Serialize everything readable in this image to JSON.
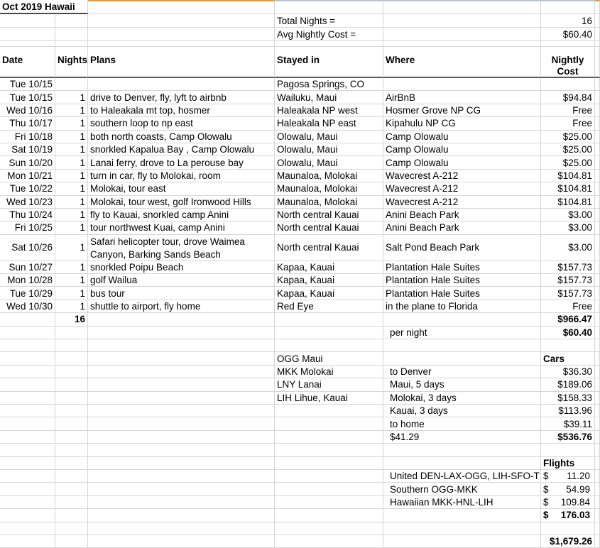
{
  "sheet": {
    "title": "Oct 2019 Hawaii",
    "summary": {
      "total_nights_label": "Total Nights =",
      "total_nights_value": "16",
      "avg_cost_label": "Avg Nightly Cost =",
      "avg_cost_value": "$60.40"
    },
    "headers": {
      "date": "Date",
      "nights": "Nights",
      "plans": "Plans",
      "stayed": "Stayed in",
      "where": "Where",
      "cost": "Nightly Cost"
    }
  },
  "rows": [
    {
      "date": "Tue 10/15",
      "stayed": "Pagosa Springs, CO"
    },
    {
      "date": "Tue 10/15",
      "nights": "1",
      "plans": "drive to Denver, fly, lyft to airbnb",
      "stayed": "Wailuku, Maui",
      "where": "AirBnB",
      "cost": "$94.84"
    },
    {
      "date": "Wed 10/16",
      "nights": "1",
      "plans": "to Haleakala mt top, hosmer",
      "stayed": "Haleakala NP west",
      "where": "Hosmer Grove NP CG",
      "cost": "Free"
    },
    {
      "date": "Thu 10/17",
      "nights": "1",
      "plans": "southern loop to np east",
      "stayed": "Haleakala NP east",
      "where": "Kipahulu NP CG",
      "cost": "Free"
    },
    {
      "date": "Fri 10/18",
      "nights": "1",
      "plans": "both north coasts, Camp Olowalu",
      "stayed": "Olowalu, Maui",
      "where": "Camp Olowalu",
      "cost": "$25.00"
    },
    {
      "date": "Sat 10/19",
      "nights": "1",
      "plans": "snorkled Kapalua Bay , Camp Olowalu",
      "stayed": "Olowalu, Maui",
      "where": "Camp Olowalu",
      "cost": "$25.00"
    },
    {
      "date": "Sun 10/20",
      "nights": "1",
      "plans": "Lanai ferry, drove to La perouse bay",
      "stayed": "Olowalu, Maui",
      "where": "Camp Olowalu",
      "cost": "$25.00"
    },
    {
      "date": "Mon 10/21",
      "nights": "1",
      "plans": "turn in car, fly to Molokai, room",
      "stayed": "Maunaloa, Molokai",
      "where": "Wavecrest A-212",
      "cost": "$104.81"
    },
    {
      "date": "Tue 10/22",
      "nights": "1",
      "plans": "Molokai, tour east",
      "stayed": "Maunaloa, Molokai",
      "where": "Wavecrest A-212",
      "cost": "$104.81"
    },
    {
      "date": "Wed 10/23",
      "nights": "1",
      "plans": "Molokai, tour west, golf Ironwood Hills",
      "stayed": "Maunaloa, Molokai",
      "where": "Wavecrest A-212",
      "cost": "$104.81"
    },
    {
      "date": "Thu 10/24",
      "nights": "1",
      "plans": "fly to Kauai, snorkled  camp Anini",
      "stayed": "North central Kauai",
      "where": "Anini Beach Park",
      "cost": "$3.00"
    },
    {
      "date": "Fri 10/25",
      "nights": "1",
      "plans": "tour northwest Kuai, camp Anini",
      "stayed": "North central Kauai",
      "where": "Anini Beach Park",
      "cost": "$3.00"
    },
    {
      "date": "Sat 10/26",
      "nights": "1",
      "plans": "Safari helicopter tour, drove Waimea Canyon, Barking Sands Beach",
      "stayed": "North central Kauai",
      "where": "Salt Pond Beach Park",
      "cost": "$3.00",
      "h": 37,
      "wrap": true
    },
    {
      "date": "Sun 10/27",
      "nights": "1",
      "plans": "snorkled Poipu Beach",
      "stayed": "Kapaa, Kauai",
      "where": "Plantation Hale Suites",
      "cost": "$157.73"
    },
    {
      "date": "Mon 10/28",
      "nights": "1",
      "plans": "golf Wailua",
      "stayed": "Kapaa, Kauai",
      "where": "Plantation Hale Suites",
      "cost": "$157.73"
    },
    {
      "date": "Tue 10/29",
      "nights": "1",
      "plans": "bus tour",
      "stayed": "Kapaa, Kauai",
      "where": "Plantation Hale Suites",
      "cost": "$157.73"
    },
    {
      "date": "Wed 10/30",
      "nights": "1",
      "plans": "shuttle to airport, fly home",
      "stayed": "Red Eye",
      "where": "in the plane to Florida",
      "cost": "Free"
    },
    {
      "nights": "16",
      "cost": "$966.47",
      "boldNights": true,
      "boldCost": true
    },
    {
      "where": "per night",
      "cost": "$60.40",
      "whereIndent": true,
      "boldCost": true
    },
    {},
    {
      "stayed": "OGG Maui",
      "cost": "Cars",
      "boldCost": true,
      "costLeft": true
    },
    {
      "stayed": "MKK Molokai",
      "where": "to Denver",
      "cost": "$36.30",
      "whereIndent": true
    },
    {
      "stayed": "LNY Lanai",
      "where": "Maui, 5 days",
      "cost": "$189.06",
      "whereIndent": true
    },
    {
      "stayed": "LIH Lihue, Kauai",
      "where": "Molokai, 3 days",
      "cost": "$158.33",
      "whereIndent": true
    },
    {
      "where": "Kauai, 3 days",
      "cost": "$113.96",
      "whereIndent": true
    },
    {
      "where": "to home",
      "cost": "$39.11",
      "whereIndent": true
    },
    {
      "where": "$41.29",
      "cost": "$536.76",
      "whereIndent": true,
      "boldCost": true
    },
    {},
    {
      "cost": "Flights",
      "boldCost": true,
      "costLeft": true
    },
    {
      "where": "United DEN-LAX-OGG, LIH-SFO-T",
      "costSym": "$",
      "costAmt": "11.20",
      "whereIndent": true
    },
    {
      "where": "Southern OGG-MKK",
      "costSym": "$",
      "costAmt": "54.99",
      "whereIndent": true
    },
    {
      "where": "Hawaiian MKK-HNL-LIH",
      "costSym": "$",
      "costAmt": "109.84",
      "whereIndent": true
    },
    {
      "costSym": "$",
      "costAmt": "176.03",
      "boldCost": true
    },
    {},
    {
      "cost": "$1,679.26",
      "boldCost": true
    }
  ]
}
